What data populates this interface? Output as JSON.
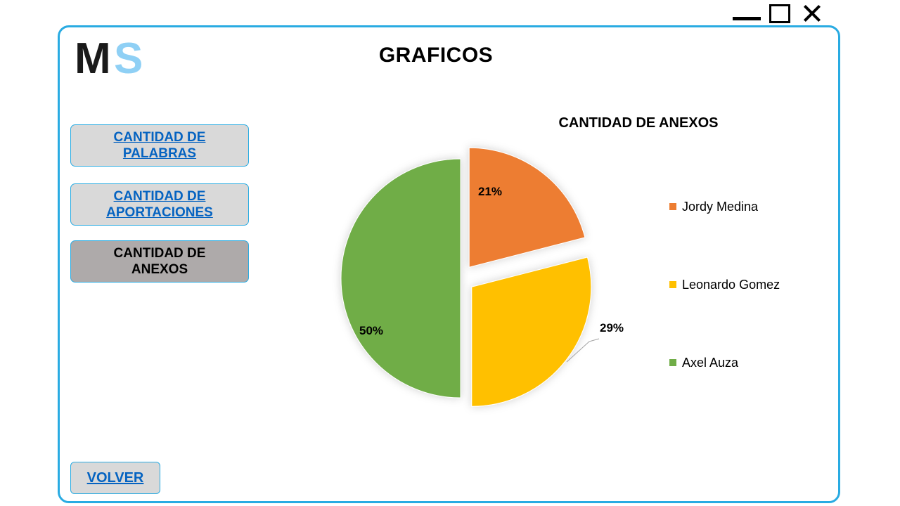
{
  "window": {
    "minimize_icon": "minimize-icon",
    "maximize_icon": "maximize-icon",
    "close_icon": "close-icon"
  },
  "logo": {
    "text_m": "M",
    "text_s": "S",
    "color_m": "#1a1a1a",
    "color_s": "#8fd0f5"
  },
  "page_title": "GRAFICOS",
  "nav": {
    "palabras": "CANTIDAD DE PALABRAS",
    "aportaciones": "CANTIDAD DE APORTACIONES",
    "anexos": "CANTIDAD DE ANEXOS"
  },
  "volver": "VOLVER",
  "colors": {
    "accent": "#29abe2",
    "link": "#0563c1",
    "button_bg": "#d9d9d9",
    "button_active_bg": "#aeaaaa"
  },
  "chart_data": {
    "type": "pie",
    "title": "CANTIDAD DE ANEXOS",
    "slices": [
      {
        "name": "Jordy Medina",
        "value": 21,
        "label": "21%",
        "color": "#ed7d31",
        "exploded": true
      },
      {
        "name": "Leonardo Gomez",
        "value": 29,
        "label": "29%",
        "color": "#ffc000",
        "exploded": true
      },
      {
        "name": "Axel Auza",
        "value": 50,
        "label": "50%",
        "color": "#70ad47",
        "exploded": false
      }
    ],
    "legend_position": "right"
  }
}
